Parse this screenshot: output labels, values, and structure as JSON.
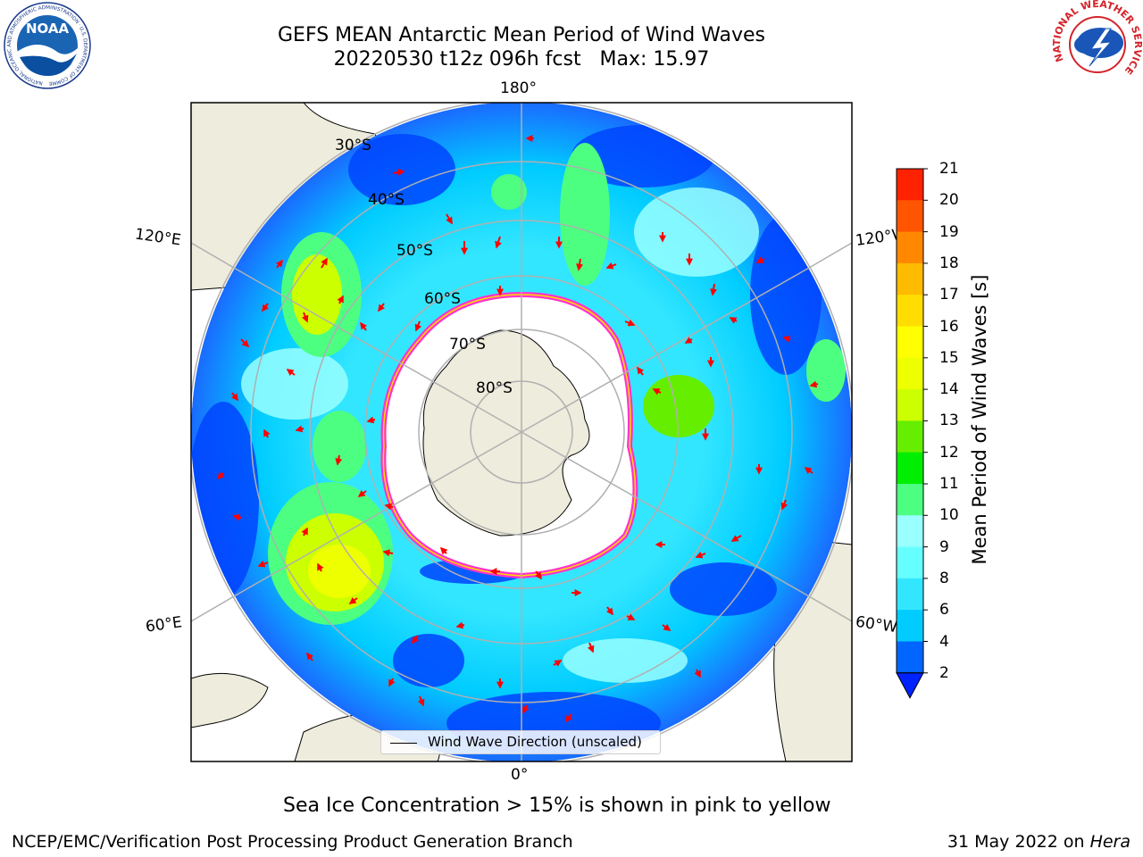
{
  "title": {
    "line1": "GEFS MEAN Antarctic Mean Period of Wind Waves",
    "line2": "20220530 t12z 096h fcst   Max: 15.97"
  },
  "logos": {
    "left": "NOAA",
    "left_ring": "NATIONAL OCEANIC AND ATMOSPHERIC ADMINISTRATION · U.S. DEPARTMENT OF COMMERCE",
    "right_ring": "NATIONAL WEATHER SERVICE"
  },
  "map": {
    "projection": "south-polar-stereographic",
    "lon_labels": {
      "top": "180°",
      "bottom": "0°",
      "upper_left": "120°E",
      "upper_right": "120°W",
      "lower_left": "60°E",
      "lower_right": "60°W"
    },
    "lat_labels": [
      "30°S",
      "40°S",
      "50°S",
      "60°S",
      "70°S",
      "80°S"
    ],
    "legend_text": "Wind Wave Direction (unscaled)",
    "colors": {
      "land": "#eeecdc",
      "sea_ice_edge": "#ff33cc",
      "arrows": "#ff0000",
      "gridlines": "#b0b0b0"
    }
  },
  "colorbar": {
    "label": "Mean Period of Wind Waves [s]",
    "ticks": [
      "2",
      "4",
      "6",
      "8",
      "9",
      "10",
      "11",
      "12",
      "13",
      "14",
      "15",
      "16",
      "17",
      "18",
      "19",
      "20",
      "21"
    ],
    "colors": [
      "#0066ff",
      "#00ccff",
      "#33e6ff",
      "#66ffff",
      "#99ffff",
      "#4dff80",
      "#00ee00",
      "#66ee00",
      "#ccff00",
      "#eeff00",
      "#ffff00",
      "#ffdd00",
      "#ffbb00",
      "#ff8800",
      "#ff5500",
      "#ff2200"
    ],
    "extend_color": "#0022ff"
  },
  "footer": {
    "note": "Sea Ice Concentration > 15% is shown in pink to yellow",
    "credit": "NCEP/EMC/Verification Post Processing Product Generation Branch",
    "date": "31 May 2022 on ",
    "machine": "Hera"
  }
}
